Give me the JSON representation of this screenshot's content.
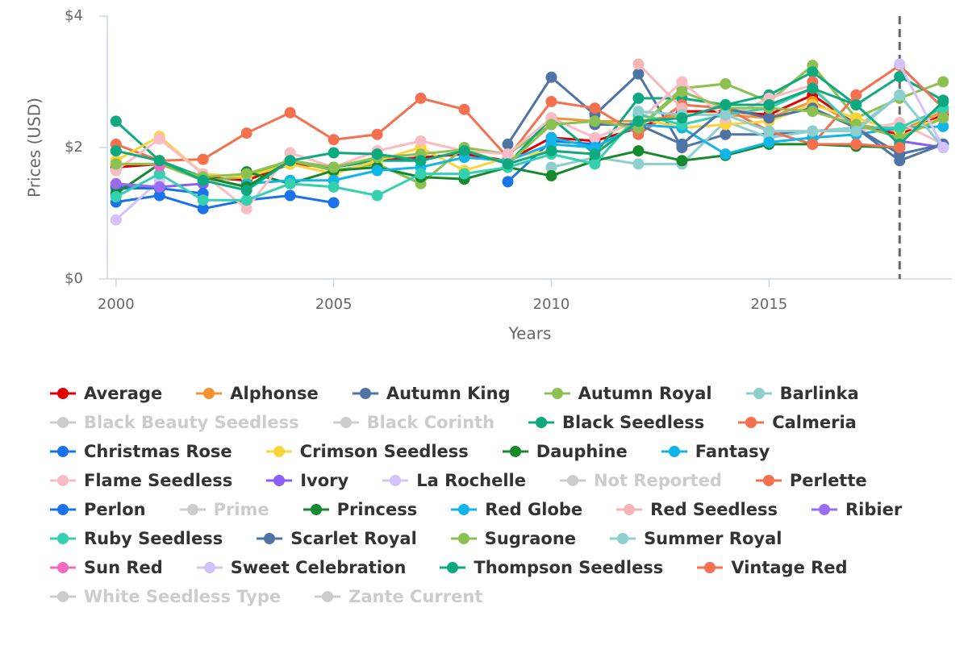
{
  "chart_data": {
    "type": "line",
    "x_label": "Years",
    "y_label": "Prices (USD)",
    "x": [
      2000,
      2001,
      2002,
      2003,
      2004,
      2005,
      2006,
      2007,
      2008,
      2009,
      2010,
      2011,
      2012,
      2013,
      2014,
      2015,
      2016,
      2017,
      2018,
      2019
    ],
    "xlim": [
      1999.8,
      2019.2
    ],
    "xticks": [
      2000,
      2005,
      2010,
      2015
    ],
    "ylim": [
      0,
      4
    ],
    "yticks": [
      {
        "value": 0,
        "label": "$0"
      },
      {
        "value": 2,
        "label": "$2"
      },
      {
        "value": 4,
        "label": "$4"
      }
    ],
    "plot_lines_x": [
      2018
    ],
    "series": [
      {
        "name": "Average",
        "color": "#e00000",
        "values": [
          1.7,
          1.75,
          1.55,
          1.5,
          1.75,
          1.7,
          1.8,
          1.85,
          1.9,
          1.8,
          2.15,
          2.1,
          2.3,
          2.55,
          2.55,
          2.5,
          2.8,
          2.35,
          2.2,
          2.5
        ]
      },
      {
        "name": "Alphonse",
        "color": "#f59331",
        "values": [
          null,
          null,
          null,
          null,
          null,
          null,
          null,
          null,
          null,
          null,
          2.45,
          2.4,
          2.4,
          2.5,
          2.5,
          2.45,
          2.7,
          2.35,
          2.25,
          2.55
        ]
      },
      {
        "name": "Autumn King",
        "color": "#4e74a6",
        "values": [
          null,
          null,
          null,
          null,
          null,
          null,
          null,
          null,
          null,
          2.05,
          3.07,
          2.5,
          3.12,
          2.0,
          2.2,
          2.2,
          2.25,
          2.3,
          1.8,
          2.05
        ]
      },
      {
        "name": "Autumn Royal",
        "color": "#8cc152",
        "values": [
          1.75,
          1.75,
          1.5,
          1.55,
          1.8,
          1.65,
          1.75,
          1.45,
          2.0,
          1.9,
          2.35,
          2.4,
          2.3,
          2.9,
          2.97,
          2.7,
          3.25,
          2.45,
          2.75,
          3.0
        ]
      },
      {
        "name": "Barlinka",
        "color": "#8dcfcf",
        "values": [
          null,
          null,
          null,
          null,
          null,
          null,
          null,
          null,
          null,
          null,
          1.7,
          1.85,
          1.75,
          1.75,
          2.4,
          2.15,
          2.25,
          2.3,
          2.8,
          2.0
        ]
      },
      {
        "name": "Black Beauty Seedless",
        "color": "#cccccc",
        "visible": false
      },
      {
        "name": "Black Corinth",
        "color": "#cccccc",
        "visible": false
      },
      {
        "name": "Black Seedless",
        "color": "#0fa980",
        "values": [
          2.4,
          1.8,
          1.55,
          1.4,
          1.8,
          1.7,
          1.8,
          1.8,
          1.95,
          1.75,
          2.45,
          1.9,
          2.75,
          2.75,
          2.65,
          2.8,
          3.15,
          2.65,
          3.08,
          2.72
        ]
      },
      {
        "name": "Calmeria",
        "color": "#f4704f",
        "values": [
          2.05,
          1.8,
          1.82,
          2.22,
          2.53,
          2.12,
          2.2,
          2.75,
          2.58,
          1.85,
          2.7,
          2.6,
          2.2,
          2.65,
          2.6,
          2.25,
          2.05,
          2.8,
          3.25,
          2.6
        ]
      },
      {
        "name": "Christmas Rose",
        "color": "#1a73e8",
        "values": [
          1.17,
          1.27,
          1.07,
          1.2,
          1.27,
          1.16,
          null,
          null,
          null,
          1.48,
          2.1,
          2.05,
          null,
          null,
          null,
          null,
          null,
          null,
          null,
          null
        ]
      },
      {
        "name": "Crimson Seedless",
        "color": "#fdd33a",
        "values": [
          1.8,
          2.17,
          1.6,
          1.55,
          1.75,
          1.6,
          1.8,
          2.0,
          1.65,
          1.85,
          1.95,
          1.9,
          2.45,
          2.3,
          2.35,
          2.4,
          2.65,
          2.45,
          2.25,
          2.45
        ]
      },
      {
        "name": "Dauphine",
        "color": "#15892b",
        "values": [
          null,
          null,
          null,
          1.63,
          1.45,
          1.65,
          1.7,
          1.55,
          1.52,
          1.7,
          1.57,
          1.8,
          1.95,
          1.8,
          1.88,
          2.05,
          2.05,
          2.02,
          2.0,
          null
        ]
      },
      {
        "name": "Fantasy",
        "color": "#12b5ea",
        "values": [
          null,
          null,
          null,
          1.45,
          1.5,
          1.5,
          1.65,
          1.7,
          1.85,
          1.8,
          2.05,
          2.0,
          2.35,
          2.3,
          1.9,
          2.08,
          2.15,
          2.2,
          2.3,
          2.32
        ]
      },
      {
        "name": "Flame Seedless",
        "color": "#f9bcc5",
        "values": [
          1.65,
          2.13,
          1.6,
          1.07,
          1.92,
          1.7,
          1.95,
          2.1,
          1.95,
          1.9,
          2.45,
          2.15,
          2.4,
          3.0,
          2.45,
          2.75,
          2.95,
          2.25,
          2.38,
          2.05
        ]
      },
      {
        "name": "Ivory",
        "color": "#8b5cf6",
        "values": [
          1.42,
          1.4,
          1.45,
          null,
          null,
          null,
          null,
          null,
          null,
          null,
          null,
          null,
          null,
          null,
          null,
          null,
          null,
          null,
          2.1,
          2.0
        ]
      },
      {
        "name": "La Rochelle",
        "color": "#d3c2fb",
        "values": [
          0.9,
          1.5,
          null,
          null,
          null,
          null,
          null,
          null,
          null,
          null,
          null,
          null,
          null,
          null,
          null,
          null,
          null,
          null,
          null,
          null
        ]
      },
      {
        "name": "Not Reported",
        "color": "#cccccc",
        "visible": false
      },
      {
        "name": "Perlette",
        "color": "#f4704f",
        "values": [
          null,
          null,
          null,
          null,
          null,
          null,
          null,
          null,
          null,
          null,
          null,
          null,
          null,
          null,
          null,
          null,
          3.0,
          null,
          null,
          2.55
        ]
      },
      {
        "name": "Perlon",
        "color": "#1a73e8",
        "values": [
          1.38,
          1.38,
          1.3,
          null,
          null,
          null,
          null,
          null,
          null,
          null,
          null,
          null,
          null,
          null,
          null,
          null,
          null,
          null,
          null,
          null
        ]
      },
      {
        "name": "Prime",
        "color": "#cccccc",
        "visible": false
      },
      {
        "name": "Princess",
        "color": "#15892b",
        "values": [
          1.3,
          1.75,
          1.55,
          1.4,
          1.8,
          null,
          null,
          null,
          null,
          null,
          null,
          null,
          null,
          null,
          null,
          null,
          null,
          null,
          null,
          null
        ]
      },
      {
        "name": "Red Globe",
        "color": "#12b5ea",
        "values": [
          null,
          null,
          null,
          null,
          null,
          null,
          null,
          null,
          null,
          null,
          2.15,
          2.0,
          null,
          null,
          null,
          null,
          null,
          null,
          null,
          null
        ]
      },
      {
        "name": "Red Seedless",
        "color": "#f7b6b6",
        "values": [
          null,
          null,
          null,
          null,
          null,
          null,
          null,
          null,
          null,
          null,
          null,
          null,
          3.27,
          2.6,
          null,
          null,
          null,
          null,
          null,
          2.68
        ]
      },
      {
        "name": "Ribier",
        "color": "#9b6cf0",
        "values": [
          1.45,
          1.4,
          null,
          null,
          null,
          null,
          null,
          null,
          null,
          null,
          null,
          null,
          null,
          null,
          null,
          null,
          null,
          null,
          null,
          null
        ]
      },
      {
        "name": "Ruby Seedless",
        "color": "#34d1b0",
        "values": [
          1.25,
          1.6,
          1.2,
          1.2,
          1.45,
          1.4,
          1.27,
          1.6,
          1.6,
          1.7,
          1.9,
          1.75,
          2.5,
          2.35,
          2.5,
          2.6,
          2.9,
          2.3,
          2.3,
          2.6
        ]
      },
      {
        "name": "Scarlet Royal",
        "color": "#4e74a6",
        "values": [
          null,
          null,
          null,
          null,
          null,
          null,
          null,
          null,
          null,
          null,
          null,
          2.35,
          2.35,
          2.05,
          2.6,
          2.45,
          2.6,
          2.3,
          1.9,
          2.05
        ]
      },
      {
        "name": "Sugraone",
        "color": "#8cc152",
        "values": [
          1.75,
          1.75,
          1.55,
          1.6,
          1.8,
          1.7,
          1.85,
          1.9,
          1.97,
          1.75,
          2.35,
          2.4,
          2.3,
          2.85,
          2.6,
          2.6,
          2.55,
          2.35,
          2.15,
          2.45
        ]
      },
      {
        "name": "Summer Royal",
        "color": "#8dcfcf",
        "values": [
          null,
          null,
          null,
          null,
          null,
          null,
          null,
          null,
          null,
          null,
          null,
          null,
          2.55,
          2.5,
          2.5,
          2.25,
          2.25,
          2.25,
          2.8,
          2.0
        ]
      },
      {
        "name": "Sun Red",
        "color": "#f06bc0",
        "values": [
          null,
          1.72,
          null,
          null,
          null,
          null,
          null,
          null,
          null,
          null,
          null,
          null,
          null,
          null,
          null,
          null,
          null,
          null,
          null,
          null
        ]
      },
      {
        "name": "Sweet Celebration",
        "color": "#d3c2fb",
        "values": [
          null,
          null,
          null,
          null,
          null,
          null,
          null,
          null,
          null,
          null,
          null,
          null,
          null,
          null,
          null,
          null,
          null,
          null,
          3.27,
          2.0
        ]
      },
      {
        "name": "Thompson Seedless",
        "color": "#0fa980",
        "values": [
          1.95,
          1.8,
          1.5,
          1.35,
          1.8,
          1.92,
          1.9,
          1.8,
          1.95,
          1.75,
          1.95,
          1.9,
          2.4,
          2.45,
          2.65,
          2.65,
          2.9,
          2.65,
          2.05,
          2.7
        ]
      },
      {
        "name": "Vintage Red",
        "color": "#f4704f",
        "values": [
          null,
          null,
          null,
          null,
          null,
          null,
          null,
          null,
          null,
          null,
          null,
          null,
          null,
          null,
          null,
          null,
          2.05,
          2.05,
          2.0,
          null
        ]
      },
      {
        "name": "White Seedless Type",
        "color": "#cccccc",
        "visible": false
      },
      {
        "name": "Zante Current",
        "color": "#cccccc",
        "visible": false
      }
    ]
  }
}
